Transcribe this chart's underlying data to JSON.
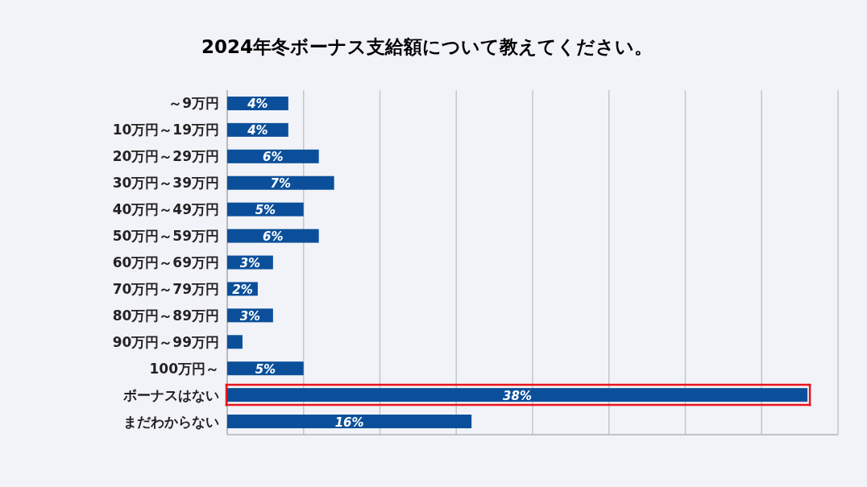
{
  "chart_data": {
    "type": "bar",
    "orientation": "horizontal",
    "title": "2024年冬ボーナス支給額について教えてください。",
    "categories": [
      "～9万円",
      "10万円～19万円",
      "20万円～29万円",
      "30万円～39万円",
      "40万円～49万円",
      "50万円～59万円",
      "60万円～69万円",
      "70万円～79万円",
      "80万円～89万円",
      "90万円～99万円",
      "100万円～",
      "ボーナスはない",
      "まだわからない"
    ],
    "values": [
      4,
      4,
      6,
      7,
      5,
      6,
      3,
      2,
      3,
      1,
      5,
      38,
      16
    ],
    "value_labels": [
      "4%",
      "4%",
      "6%",
      "7%",
      "5%",
      "6%",
      "3%",
      "2%",
      "3%",
      null,
      "5%",
      "38%",
      "16%"
    ],
    "color": "#0b4f9a",
    "xlim": [
      0,
      40
    ],
    "xticks": [
      {
        "value": 0,
        "label": null
      },
      {
        "value": 5,
        "label": null
      },
      {
        "value": 10,
        "label": null
      },
      {
        "value": 15,
        "label": null
      },
      {
        "value": 20,
        "label": null
      },
      {
        "value": 25,
        "label": null
      },
      {
        "value": 30,
        "label": null
      },
      {
        "value": 35,
        "label": null
      },
      {
        "value": 40,
        "label": null
      }
    ],
    "grid": "x",
    "tick_labels": "y"
  }
}
